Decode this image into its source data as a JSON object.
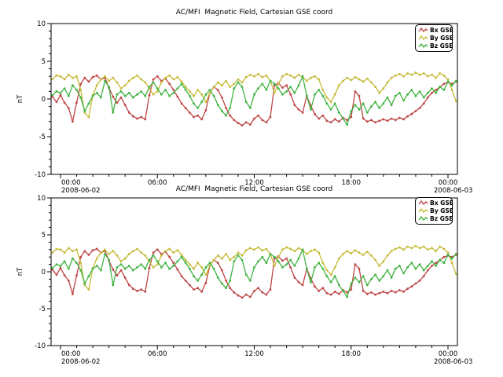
{
  "window": {
    "background": "#ffffff"
  },
  "chart_data": {
    "type": "line",
    "panel_count": 2,
    "panels_note": "two stacked panels showing identical data",
    "title": "AC/MFI  Magnetic Field, Cartesian GSE coord",
    "ylabel": "nT",
    "ylim": [
      -10,
      10
    ],
    "yticks_major": [
      10,
      5,
      0,
      -5,
      -10
    ],
    "y_minor_step": 1,
    "grid": false,
    "x_axis": {
      "major_ticks_hours": [
        0,
        6,
        12,
        18,
        24
      ],
      "major_tick_labels": [
        "00:00",
        "06:00",
        "12:00",
        "18:00",
        "00:00"
      ],
      "minor_tick_hours": 1,
      "start_label": {
        "time": "00:00",
        "date": "2008-06-02"
      },
      "end_label": {
        "time": "00:00",
        "date": "2008-06-03"
      }
    },
    "legend": {
      "position": "top-right",
      "entries": [
        "Bx GSE",
        "By GSE",
        "Bz GSE"
      ]
    },
    "x_start": -0.5,
    "x_step": 0.25,
    "x_unit": "hours from 2008-06-02 00:00",
    "series": [
      {
        "key": "bx",
        "name": "Bx GSE",
        "color": "#bf4646",
        "values": [
          0.3,
          -0.4,
          0.5,
          -0.5,
          -1.2,
          -3.0,
          -0.5,
          2.0,
          2.8,
          2.3,
          2.9,
          3.1,
          2.6,
          2.8,
          1.5,
          0.3,
          -0.5,
          0.2,
          -0.8,
          -1.8,
          -2.3,
          -2.6,
          -2.4,
          -2.7,
          0.5,
          2.6,
          3.0,
          2.4,
          2.7,
          2.0,
          1.2,
          0.3,
          -0.6,
          -1.2,
          -1.8,
          -2.4,
          -2.2,
          -2.7,
          -1.5,
          0.8,
          1.6,
          1.2,
          0.2,
          -1.2,
          -2.2,
          -2.8,
          -3.2,
          -3.5,
          -3.1,
          -3.4,
          -2.6,
          -2.2,
          -2.8,
          -3.1,
          -2.4,
          1.8,
          2.1,
          1.5,
          1.8,
          0.6,
          -0.8,
          -1.4,
          -1.8,
          0.4,
          -0.9,
          -2.0,
          -2.6,
          -2.2,
          -2.9,
          -3.1,
          -2.7,
          -3.0,
          -2.5,
          -2.8,
          -2.4,
          1.0,
          0.4,
          -2.6,
          -3.0,
          -2.8,
          -3.1,
          -2.9,
          -2.7,
          -2.9,
          -2.6,
          -2.8,
          -2.5,
          -2.7,
          -2.3,
          -2.0,
          -1.6,
          -1.2,
          -0.6,
          0.2,
          0.8,
          1.2,
          1.6,
          2.0,
          2.2,
          2.0,
          2.3
        ]
      },
      {
        "key": "by",
        "name": "By GSE",
        "color": "#c6bb3a",
        "values": [
          2.6,
          3.1,
          3.0,
          2.6,
          3.2,
          2.8,
          3.0,
          1.2,
          -1.8,
          -2.4,
          0.5,
          1.8,
          2.6,
          3.0,
          2.4,
          2.8,
          2.2,
          1.4,
          1.8,
          2.4,
          2.8,
          3.1,
          2.6,
          2.2,
          1.4,
          0.6,
          1.0,
          2.2,
          2.8,
          3.1,
          2.6,
          2.9,
          2.3,
          1.6,
          1.0,
          0.4,
          1.2,
          0.6,
          -0.4,
          0.8,
          1.6,
          2.2,
          1.8,
          2.4,
          1.6,
          2.0,
          2.6,
          2.2,
          2.9,
          3.2,
          3.0,
          3.3,
          2.9,
          3.1,
          2.4,
          0.8,
          2.0,
          3.0,
          3.3,
          3.1,
          2.8,
          3.2,
          2.9,
          2.4,
          2.8,
          3.0,
          2.6,
          1.2,
          0.2,
          -0.4,
          0.6,
          1.8,
          2.4,
          2.8,
          2.5,
          2.9,
          2.6,
          2.3,
          2.7,
          2.2,
          1.6,
          0.8,
          1.4,
          2.2,
          2.8,
          3.1,
          3.3,
          3.0,
          3.4,
          3.2,
          3.5,
          3.2,
          3.4,
          3.0,
          3.2,
          2.8,
          3.4,
          3.1,
          2.6,
          1.2,
          -0.3
        ]
      },
      {
        "key": "bz",
        "name": "Bz GSE",
        "color": "#42b442",
        "values": [
          0.5,
          1.0,
          0.8,
          1.4,
          0.4,
          1.8,
          1.2,
          0.2,
          -1.6,
          -0.6,
          0.4,
          0.8,
          0.2,
          2.4,
          1.6,
          -1.8,
          0.6,
          1.0,
          0.4,
          0.8,
          0.2,
          0.6,
          1.0,
          0.4,
          1.6,
          2.2,
          1.4,
          0.6,
          1.2,
          0.4,
          0.8,
          1.4,
          2.0,
          1.2,
          0.4,
          -0.6,
          -1.2,
          -0.4,
          0.6,
          1.2,
          0.4,
          -0.8,
          -1.6,
          -2.2,
          -1.2,
          1.4,
          2.2,
          1.6,
          -0.4,
          -1.2,
          0.6,
          1.4,
          2.0,
          1.2,
          2.4,
          2.0,
          1.4,
          0.6,
          1.0,
          1.6,
          0.8,
          1.8,
          3.0,
          0.4,
          -1.4,
          0.6,
          1.2,
          0.4,
          -0.6,
          -1.4,
          -0.6,
          -1.8,
          -2.6,
          -3.4,
          -1.6,
          -0.8,
          -1.4,
          -0.6,
          -1.8,
          -1.0,
          -0.4,
          -1.2,
          -0.6,
          0.2,
          -0.8,
          0.4,
          0.8,
          -0.2,
          0.6,
          1.2,
          0.4,
          1.0,
          0.2,
          0.8,
          1.4,
          0.8,
          1.6,
          1.2,
          2.3,
          1.8,
          2.4
        ]
      }
    ]
  }
}
